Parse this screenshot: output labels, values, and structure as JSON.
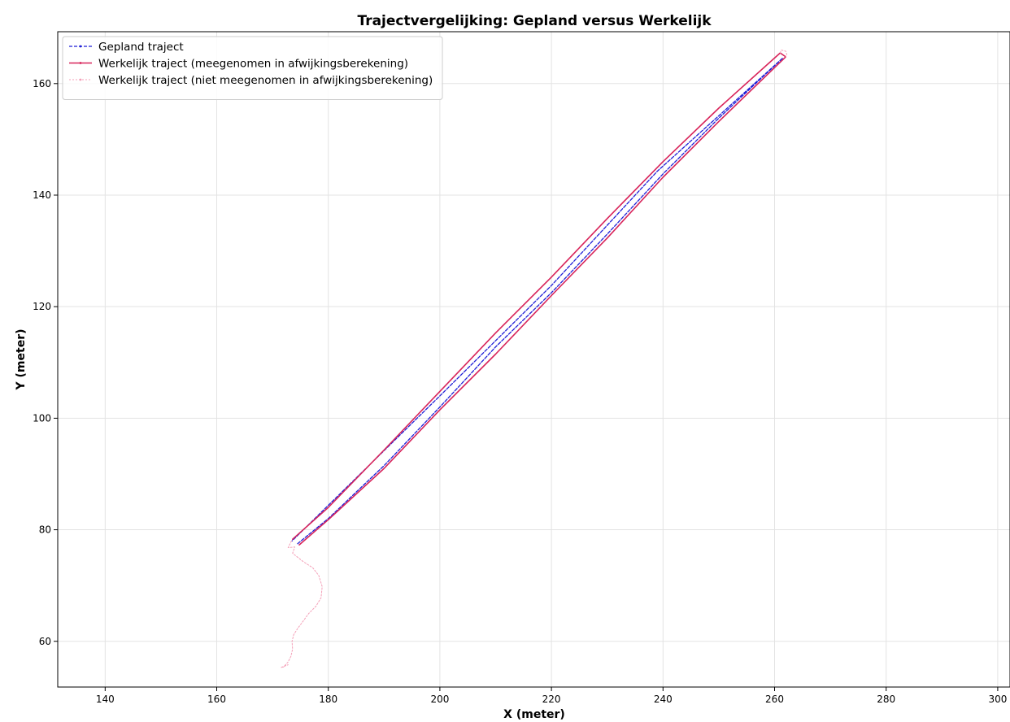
{
  "chart_data": {
    "type": "line",
    "title": "Trajectvergelijking: Gepland versus Werkelijk",
    "xlabel": "X (meter)",
    "ylabel": "Y (meter)",
    "xlim": [
      131.5,
      302.2
    ],
    "ylim": [
      51.8,
      169.3
    ],
    "xticks": [
      140,
      160,
      180,
      200,
      220,
      240,
      260,
      280,
      300
    ],
    "yticks": [
      60,
      80,
      100,
      120,
      140,
      160
    ],
    "grid": true,
    "legend_position": "top-left",
    "series": [
      {
        "name": "Gepland traject",
        "color": "#1f1fd6",
        "style": "dashed",
        "points": [
          [
            174.5,
            77.5
          ],
          [
            180,
            82.0
          ],
          [
            190,
            91.5
          ],
          [
            200,
            102.0
          ],
          [
            210,
            112.8
          ],
          [
            220,
            122.5
          ],
          [
            230,
            133.0
          ],
          [
            240,
            143.8
          ],
          [
            250,
            153.8
          ],
          [
            261.5,
            164.6
          ],
          [
            239.0,
            144.3
          ],
          [
            220.0,
            123.8
          ],
          [
            200.0,
            104.0
          ],
          [
            173.5,
            78.0
          ]
        ]
      },
      {
        "name": "Werkelijk traject (meegenomen in afwijkingsberekening)",
        "color": "#d8245a",
        "style": "solid",
        "points": [
          [
            173.6,
            78.3
          ],
          [
            180,
            84.0
          ],
          [
            190,
            94.3
          ],
          [
            200,
            104.8
          ],
          [
            210,
            115.3
          ],
          [
            220,
            125.3
          ],
          [
            230,
            135.8
          ],
          [
            240,
            146.0
          ],
          [
            250,
            155.6
          ],
          [
            261.0,
            165.5
          ],
          [
            262.0,
            164.8
          ],
          [
            250,
            153.2
          ],
          [
            240,
            143.2
          ],
          [
            230,
            132.3
          ],
          [
            220,
            122.0
          ],
          [
            210,
            111.5
          ],
          [
            200,
            101.5
          ],
          [
            190,
            91.0
          ],
          [
            180,
            81.8
          ],
          [
            174.8,
            77.3
          ]
        ]
      },
      {
        "name": "Werkelijk traject (niet meegenomen in afwijkingsberekening)",
        "color": "#f4a0b8",
        "style": "dotted",
        "points": [
          [
            173.4,
            78.0
          ],
          [
            172.8,
            76.8
          ],
          [
            174.0,
            76.9
          ],
          [
            173.6,
            75.8
          ],
          [
            175.5,
            74.3
          ],
          [
            177.2,
            73.2
          ],
          [
            178.3,
            71.8
          ],
          [
            178.9,
            69.8
          ],
          [
            178.7,
            67.8
          ],
          [
            177.8,
            66.3
          ],
          [
            176.5,
            65.0
          ],
          [
            175.4,
            63.5
          ],
          [
            174.5,
            62.3
          ],
          [
            173.8,
            61.2
          ],
          [
            173.5,
            60.0
          ],
          [
            173.6,
            58.6
          ],
          [
            173.3,
            57.3
          ],
          [
            172.8,
            56.3
          ],
          [
            172.0,
            55.4
          ],
          [
            171.5,
            55.3
          ],
          [
            172.8,
            55.8
          ]
        ]
      },
      {
        "name": "",
        "color": "#f4a0b8",
        "style": "dotted",
        "points": [
          [
            261.0,
            165.5
          ],
          [
            261.2,
            166.0
          ],
          [
            262.0,
            165.8
          ],
          [
            262.2,
            165.2
          ],
          [
            262.0,
            164.8
          ]
        ]
      }
    ]
  }
}
